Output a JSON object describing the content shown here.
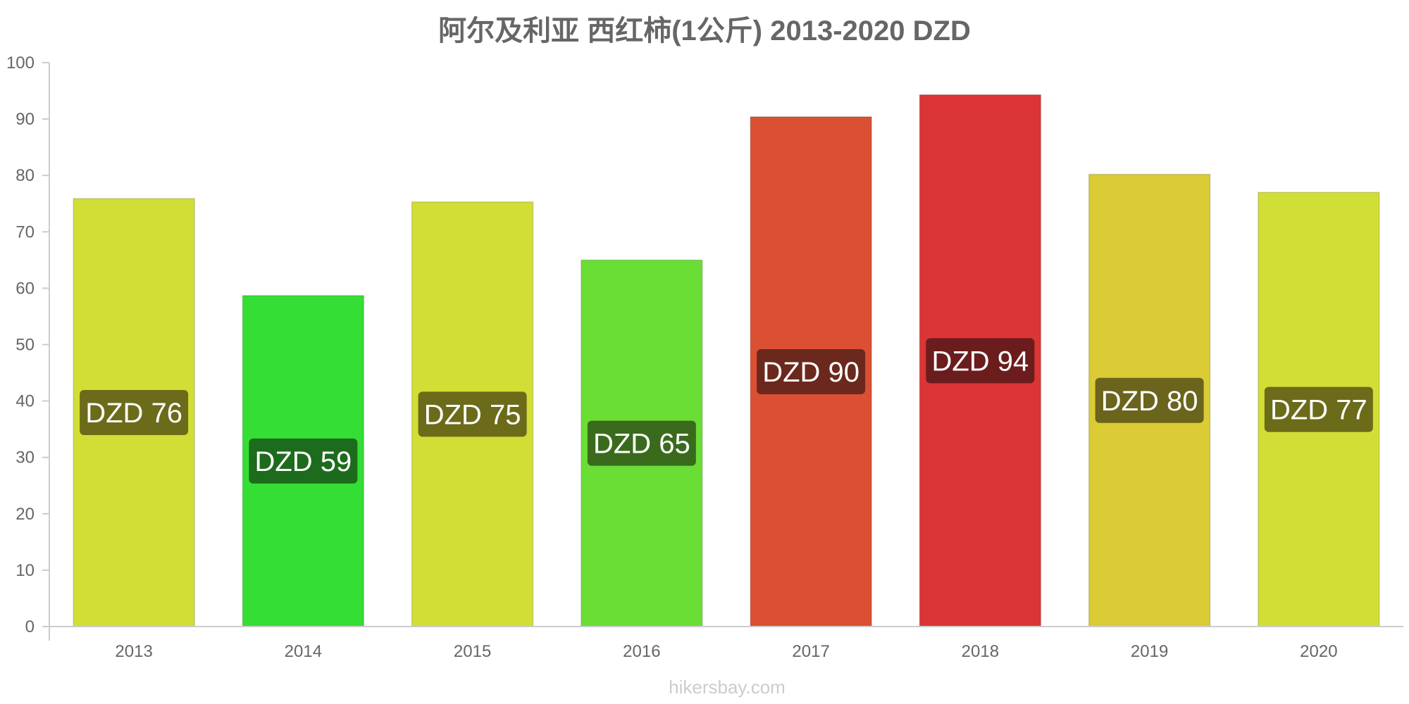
{
  "chart_data": {
    "type": "bar",
    "title": "阿尔及利亚 西红柿(1公斤) 2013-2020 DZD",
    "categories": [
      "2013",
      "2014",
      "2015",
      "2016",
      "2017",
      "2018",
      "2019",
      "2020"
    ],
    "values": [
      75.9,
      58.7,
      75.3,
      65.0,
      90.4,
      94.3,
      80.2,
      77.0
    ],
    "data_labels": [
      "DZD 76",
      "DZD 59",
      "DZD 75",
      "DZD 65",
      "DZD 90",
      "DZD 94",
      "DZD 80",
      "DZD 77"
    ],
    "bar_colors": [
      "#d1de35",
      "#35de35",
      "#d1de35",
      "#6ade35",
      "#db5033",
      "#db3535",
      "#dbcb35",
      "#d1de35"
    ],
    "label_bg_colors": [
      "#6b6b1a",
      "#1d6b1d",
      "#6b6b1a",
      "#3a6b1d",
      "#6b281d",
      "#6b1d1d",
      "#6b641d",
      "#6b6b1a"
    ],
    "yticks": [
      0,
      10,
      20,
      30,
      40,
      50,
      60,
      70,
      80,
      90,
      100
    ],
    "ylim": [
      0,
      100
    ],
    "xlabel": "",
    "ylabel": "",
    "grid": false,
    "legend": "none"
  },
  "watermark": "hikersbay.com"
}
